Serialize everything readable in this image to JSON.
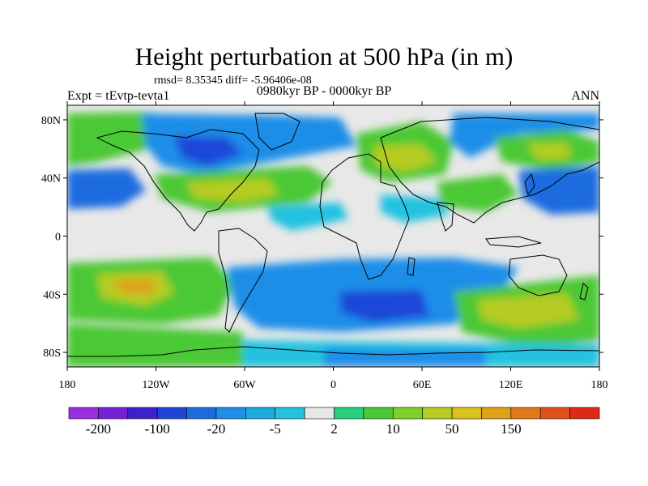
{
  "header": {
    "title": "Height perturbation at 500 hPa (in m)",
    "stats": "rmsd= 8.35345  diff= -5.96406e-08",
    "subtitle": "0980kyr BP - 0000kyr BP",
    "experiment": "Expt = tEvtp-tevta1",
    "season": "ANN"
  },
  "map": {
    "lat_labels": [
      "80N",
      "40N",
      "0",
      "40S",
      "80S"
    ],
    "lat_values": [
      80,
      40,
      0,
      -40,
      -80
    ],
    "lon_labels": [
      "180",
      "120W",
      "60W",
      "0",
      "60E",
      "120E",
      "180"
    ],
    "lon_values": [
      -180,
      -120,
      -60,
      0,
      60,
      120,
      180
    ],
    "lat_range": [
      -90,
      90
    ],
    "lon_range": [
      -180,
      180
    ]
  },
  "colorbar": {
    "colors": [
      "#9a2ee0",
      "#7420d8",
      "#3c22cc",
      "#1e46d8",
      "#1c6ce0",
      "#1f8ee8",
      "#1daadd",
      "#22c2e0",
      "#e8e8e8",
      "#26d07c",
      "#4cc836",
      "#7fd02a",
      "#b6cc22",
      "#dcc21c",
      "#e0a01a",
      "#e07a18",
      "#e05218",
      "#e02a16"
    ],
    "labels": [
      "-200",
      "-100",
      "-20",
      "-5",
      "2",
      "10",
      "50",
      "150"
    ],
    "label_after_index": [
      0,
      2,
      4,
      6,
      8,
      10,
      12,
      14
    ]
  },
  "field_colors": {
    "neutral": "#e8e8e8",
    "c_m5": "#22c2e0",
    "c_m10": "#1daadd",
    "c_m20": "#1f8ee8",
    "c_m50": "#1c6ce0",
    "c_m100": "#1e46d8",
    "c_p2": "#26d07c",
    "c_p10": "#4cc836",
    "c_p20": "#7fd02a",
    "c_p50": "#b6cc22",
    "c_p100": "#dcc21c",
    "c_p150": "#e0a01a"
  }
}
